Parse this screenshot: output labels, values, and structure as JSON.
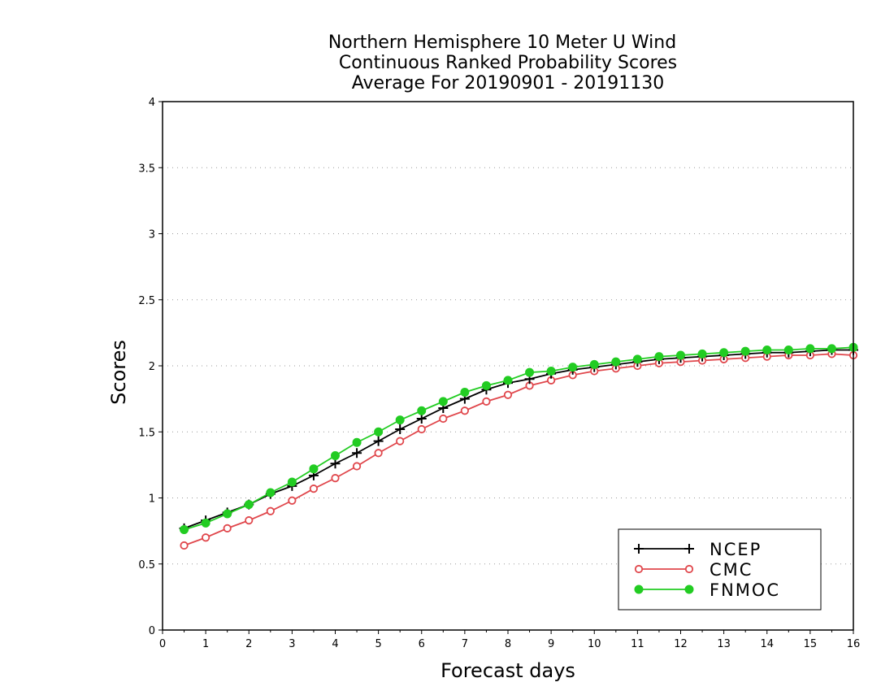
{
  "chart_data": {
    "type": "line",
    "title": [
      "Northern Hemisphere 10 Meter U Wind",
      "Continuous Ranked Probability Scores",
      "Average For 20190901 - 20191130"
    ],
    "xlabel": "Forecast days",
    "ylabel": "Scores",
    "xlim": [
      0,
      16
    ],
    "ylim": [
      0,
      4
    ],
    "xticks": [
      "0",
      "1",
      "2",
      "3",
      "4",
      "5",
      "6",
      "7",
      "8",
      "9",
      "10",
      "11",
      "12",
      "13",
      "14",
      "15",
      "16"
    ],
    "yticks": [
      "0",
      "0.5",
      "1",
      "1.5",
      "2",
      "2.5",
      "3",
      "3.5",
      "4"
    ],
    "grid": true,
    "legend_position": "bottom-right",
    "x": [
      0.5,
      1,
      1.5,
      2,
      2.5,
      3,
      3.5,
      4,
      4.5,
      5,
      5.5,
      6,
      6.5,
      7,
      7.5,
      8,
      8.5,
      9,
      9.5,
      10,
      10.5,
      11,
      11.5,
      12,
      12.5,
      13,
      13.5,
      14,
      14.5,
      15,
      15.5,
      16
    ],
    "series": [
      {
        "name": "NCEP",
        "color": "#000000",
        "marker": "plus",
        "values": [
          0.77,
          0.83,
          0.89,
          0.95,
          1.03,
          1.09,
          1.17,
          1.26,
          1.34,
          1.43,
          1.52,
          1.6,
          1.68,
          1.75,
          1.82,
          1.87,
          1.9,
          1.94,
          1.97,
          1.99,
          2.01,
          2.03,
          2.05,
          2.06,
          2.07,
          2.08,
          2.09,
          2.1,
          2.1,
          2.11,
          2.12,
          2.12
        ]
      },
      {
        "name": "CMC",
        "color": "#e0474c",
        "marker": "open-circle",
        "values": [
          0.64,
          0.7,
          0.77,
          0.83,
          0.9,
          0.98,
          1.07,
          1.15,
          1.24,
          1.34,
          1.43,
          1.52,
          1.6,
          1.66,
          1.73,
          1.78,
          1.85,
          1.89,
          1.93,
          1.96,
          1.98,
          2.0,
          2.02,
          2.03,
          2.04,
          2.05,
          2.06,
          2.07,
          2.08,
          2.08,
          2.09,
          2.08
        ]
      },
      {
        "name": "FNMOC",
        "color": "#22cc22",
        "marker": "filled-circle",
        "values": [
          0.76,
          0.81,
          0.88,
          0.95,
          1.04,
          1.12,
          1.22,
          1.32,
          1.42,
          1.5,
          1.59,
          1.66,
          1.73,
          1.8,
          1.85,
          1.89,
          1.95,
          1.96,
          1.99,
          2.01,
          2.03,
          2.05,
          2.07,
          2.08,
          2.09,
          2.1,
          2.11,
          2.12,
          2.12,
          2.13,
          2.13,
          2.14
        ]
      }
    ]
  }
}
